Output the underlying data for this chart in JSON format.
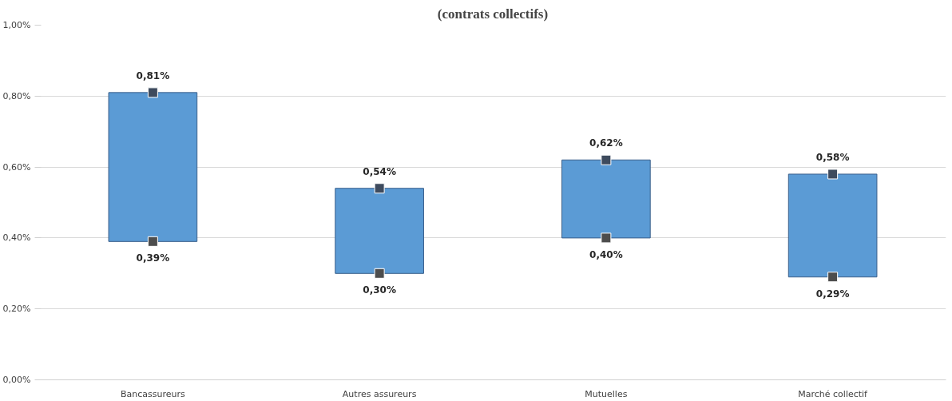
{
  "chart_data": {
    "type": "bar",
    "title": "(contrats collectifs)",
    "categories": [
      "Bancassureurs",
      "Autres assureurs",
      "Mutuelles",
      "Marché collectif"
    ],
    "series": [
      {
        "base": [
          0.39,
          0.3,
          0.4,
          0.29
        ],
        "values": [
          0.42,
          0.24,
          0.22,
          0.29
        ],
        "color": "#5b9bd5"
      },
      {
        "type": "scatter",
        "values": [
          0.81,
          0.54,
          0.62,
          0.58
        ],
        "value_labels": [
          "0,81%",
          "0,54%",
          "0,62%",
          "0,58%"
        ],
        "color": "#3e4b5e",
        "marker": "square"
      },
      {
        "type": "scatter",
        "values": [
          0.39,
          0.3,
          0.4,
          0.29
        ],
        "value_labels": [
          "0,39%",
          "0,30%",
          "0,40%",
          "0,29%"
        ],
        "color": "#4d4d4d",
        "marker": "square"
      }
    ],
    "ylim": [
      0,
      1.0
    ],
    "yticks": [
      {
        "value": 0,
        "label": "0,00%"
      },
      {
        "value": 0.2,
        "label": "0,20%"
      },
      {
        "value": 0.4,
        "label": "0,40%"
      },
      {
        "value": 0.6,
        "label": "0,60%"
      },
      {
        "value": 0.8,
        "label": "0,80%"
      },
      {
        "value": 1.0,
        "label": "1,00%"
      }
    ],
    "grid": "y"
  }
}
